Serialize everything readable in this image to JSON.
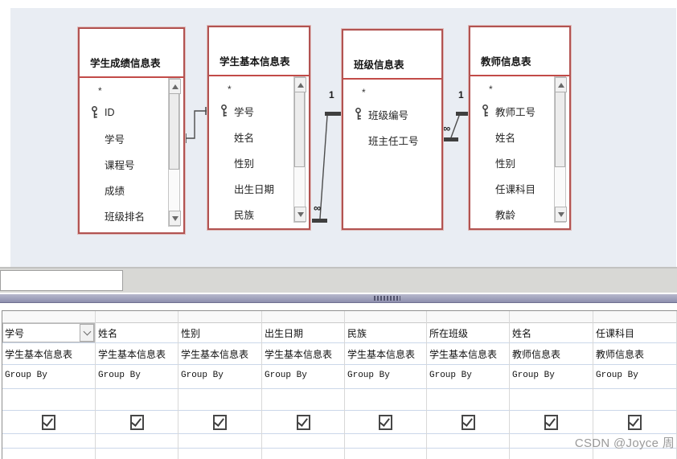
{
  "watermark": "CSDN @Joyce 周",
  "diagram": {
    "tables": [
      {
        "title": "学生成绩信息表",
        "scrollbar": true,
        "fields": [
          {
            "name": "*"
          },
          {
            "name": "ID",
            "key": true
          },
          {
            "name": "学号"
          },
          {
            "name": "课程号"
          },
          {
            "name": "成绩"
          },
          {
            "name": "班级排名"
          }
        ]
      },
      {
        "title": "学生基本信息表",
        "scrollbar": true,
        "fields": [
          {
            "name": "*"
          },
          {
            "name": "学号",
            "key": true
          },
          {
            "name": "姓名"
          },
          {
            "name": "性别"
          },
          {
            "name": "出生日期"
          },
          {
            "name": "民族"
          }
        ]
      },
      {
        "title": "班级信息表",
        "scrollbar": false,
        "fields": [
          {
            "name": "*"
          },
          {
            "name": "班级编号",
            "key": true
          },
          {
            "name": "班主任工号"
          }
        ]
      },
      {
        "title": "教师信息表",
        "scrollbar": true,
        "fields": [
          {
            "name": "*"
          },
          {
            "name": "教师工号",
            "key": true
          },
          {
            "name": "姓名"
          },
          {
            "name": "性别"
          },
          {
            "name": "任课科目"
          },
          {
            "name": "教龄"
          }
        ]
      }
    ],
    "relationships": [
      {
        "from": "学生成绩信息表",
        "to": "学生基本信息表",
        "one_label": "",
        "many_label": ""
      },
      {
        "from": "学生基本信息表",
        "to": "班级信息表",
        "one_label": "1",
        "many_label": "∞"
      },
      {
        "from": "班级信息表",
        "to": "教师信息表",
        "one_label": "1",
        "many_label": "∞"
      }
    ]
  },
  "grid": {
    "columns": [
      {
        "field": "学号",
        "table": "学生基本信息表",
        "total": "Group By",
        "show": true,
        "selected": true
      },
      {
        "field": "姓名",
        "table": "学生基本信息表",
        "total": "Group By",
        "show": true,
        "selected": false
      },
      {
        "field": "性别",
        "table": "学生基本信息表",
        "total": "Group By",
        "show": true,
        "selected": false
      },
      {
        "field": "出生日期",
        "table": "学生基本信息表",
        "total": "Group By",
        "show": true,
        "selected": false
      },
      {
        "field": "民族",
        "table": "学生基本信息表",
        "total": "Group By",
        "show": true,
        "selected": false
      },
      {
        "field": "所在班级",
        "table": "学生基本信息表",
        "total": "Group By",
        "show": true,
        "selected": false
      },
      {
        "field": "姓名",
        "table": "教师信息表",
        "total": "Group By",
        "show": true,
        "selected": false
      },
      {
        "field": "任课科目",
        "table": "教师信息表",
        "total": "Group By",
        "show": true,
        "selected": false
      }
    ]
  },
  "colors": {
    "diagram_bg": "#e9edf3",
    "table_border": "#b25351",
    "title_separator": "#c24b48",
    "splitter": "#9d9eb8",
    "grid_hline": "#cbd7e9",
    "grid_vline": "#d8d8d8",
    "watermark_gray": "#9a9a9a"
  }
}
